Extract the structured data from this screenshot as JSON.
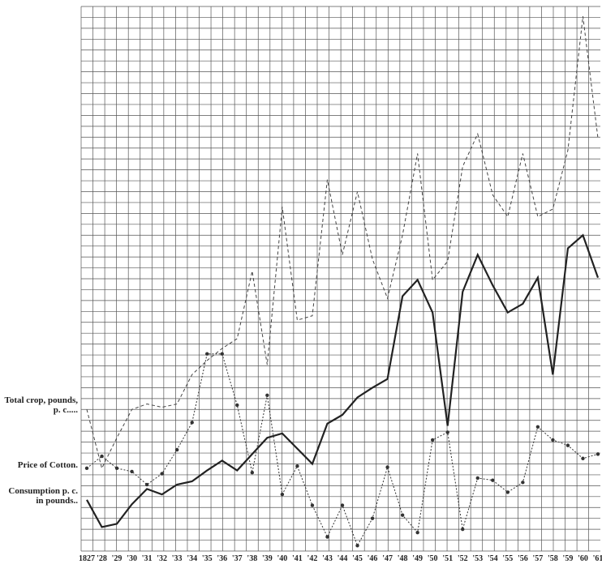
{
  "chart_data": {
    "type": "line",
    "categories": [
      "1827",
      "'28",
      "'29",
      "'30",
      "'31",
      "'32",
      "'33",
      "'34",
      "'35",
      "'36",
      "'37",
      "'38",
      "'39",
      "'40",
      "'41",
      "'42",
      "'43",
      "'44",
      "'45",
      "'46",
      "'47",
      "'48",
      "'49",
      "'50",
      "'51",
      "'52",
      "'53",
      "'54",
      "'55",
      "'56",
      "'57",
      "'58",
      "'59",
      "'60",
      "'61"
    ],
    "ylim": [
      0,
      50
    ],
    "series": [
      {
        "name": "Total crop, pounds, p. c.....",
        "color": "#444",
        "values": [
          13.0,
          7.6,
          10.4,
          13.0,
          13.5,
          13.2,
          13.5,
          16.2,
          17.5,
          18.6,
          19.5,
          25.7,
          17.1,
          31.6,
          21.2,
          21.6,
          34.1,
          27.2,
          33.0,
          26.8,
          23.2,
          29.0,
          36.5,
          24.9,
          26.6,
          35.3,
          38.3,
          32.7,
          30.7,
          36.5,
          30.7,
          31.4,
          36.8,
          49.1,
          37.9
        ]
      },
      {
        "name": "Price of Cotton.",
        "color": "#333",
        "values": [
          7.6,
          8.7,
          7.6,
          7.3,
          6.1,
          7.1,
          9.3,
          11.8,
          18.1,
          18.1,
          13.4,
          7.2,
          14.3,
          5.2,
          7.8,
          4.2,
          1.3,
          4.2,
          0.5,
          3.0,
          7.7,
          3.3,
          1.7,
          10.2,
          10.9,
          2.0,
          6.7,
          6.5,
          5.4,
          6.3,
          11.4,
          10.2,
          9.7,
          8.5,
          8.9
        ]
      },
      {
        "name": "Consumption p. c. in pounds..",
        "color": "#222",
        "values": [
          4.7,
          2.2,
          2.5,
          4.3,
          5.7,
          5.2,
          6.1,
          6.4,
          7.4,
          8.3,
          7.4,
          8.9,
          10.4,
          10.8,
          9.4,
          8.0,
          11.7,
          12.5,
          14.1,
          15.0,
          15.8,
          23.4,
          24.9,
          21.9,
          11.5,
          23.8,
          27.2,
          24.4,
          21.9,
          22.7,
          25.1,
          16.2,
          27.8,
          29.0,
          25.1
        ]
      }
    ]
  }
}
